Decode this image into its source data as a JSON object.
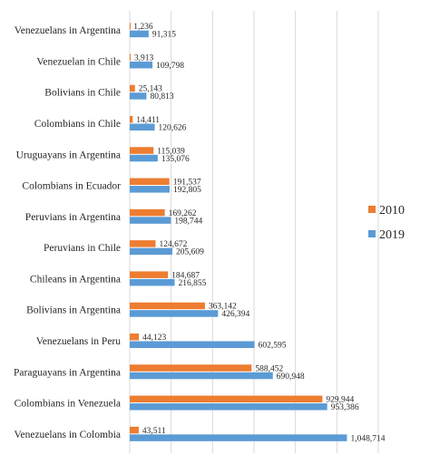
{
  "chart_data": {
    "type": "bar",
    "orientation": "horizontal",
    "categories": [
      "Venezuelans in Argentina",
      "Venezuelan in Chile",
      "Bolivians in Chile",
      "Colombians in Chile",
      "Uruguayans in Argentina",
      "Colombians in Ecuador",
      "Peruvians in Argentina",
      "Peruvians in Chile",
      "Chileans in Argentina",
      "Bolivians in Argentina",
      "Venezuelans in Peru",
      "Paraguayans in Argentina",
      "Colombians in Venezuela",
      "Venezuelans in Colombia"
    ],
    "series": [
      {
        "name": "2010",
        "color": "#ed7d31",
        "values": [
          1236,
          3913,
          25143,
          14411,
          115039,
          191537,
          169262,
          124672,
          184687,
          363142,
          44123,
          588452,
          929944,
          43511
        ],
        "labels": [
          "1,236",
          "3,913",
          "25,143",
          "14,411",
          "115,039",
          "191,537",
          "169,262",
          "124,672",
          "184,687",
          "363,142",
          "44,123",
          "588,452",
          "929,944",
          "43,511"
        ]
      },
      {
        "name": "2019",
        "color": "#5b9bd5",
        "values": [
          91315,
          109798,
          80813,
          120626,
          135076,
          192805,
          198744,
          205609,
          216855,
          426394,
          602595,
          690948,
          953386,
          1048714
        ],
        "labels": [
          "91,315",
          "109,798",
          "80,813",
          "120,626",
          "135,076",
          "192,805",
          "198,744",
          "205,609",
          "216,855",
          "426,394",
          "602,595",
          "690,948",
          "953,386",
          "1,048,714"
        ]
      }
    ],
    "xlim": [
      0,
      1200000
    ],
    "grid": true,
    "legend_position": "right",
    "title": "",
    "xlabel": "",
    "ylabel": ""
  }
}
